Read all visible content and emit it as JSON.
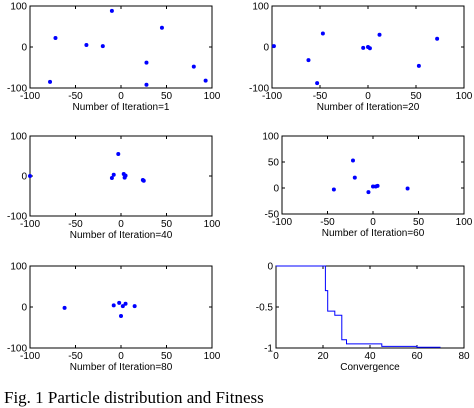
{
  "caption": "Fig. 1 Particle distribution and Fitness",
  "colors": {
    "marker": "#0000ff",
    "line": "#0000ff",
    "axes": "#000000"
  },
  "chart_data": [
    {
      "type": "scatter",
      "xlabel": "Number of Iteration=1",
      "xlim": [
        -100,
        100
      ],
      "ylim": [
        -100,
        100
      ],
      "xticks": [
        -100,
        -50,
        0,
        50,
        100
      ],
      "yticks": [
        -100,
        0,
        100
      ],
      "grid": false,
      "points": [
        [
          -78,
          -85
        ],
        [
          -72,
          22
        ],
        [
          -38,
          5
        ],
        [
          -20,
          2
        ],
        [
          -10,
          88
        ],
        [
          28,
          -38
        ],
        [
          28,
          -92
        ],
        [
          45,
          47
        ],
        [
          80,
          -48
        ],
        [
          93,
          -82
        ]
      ]
    },
    {
      "type": "scatter",
      "xlabel": "Number of Iteration=20",
      "xlim": [
        -100,
        100
      ],
      "ylim": [
        -100,
        100
      ],
      "xticks": [
        -100,
        -50,
        0,
        50,
        100
      ],
      "yticks": [
        -100,
        0,
        100
      ],
      "grid": false,
      "points": [
        [
          -98,
          2
        ],
        [
          -62,
          -32
        ],
        [
          -53,
          -88
        ],
        [
          -47,
          33
        ],
        [
          -5,
          -2
        ],
        [
          0,
          0
        ],
        [
          2,
          -3
        ],
        [
          12,
          30
        ],
        [
          53,
          -46
        ],
        [
          72,
          20
        ]
      ]
    },
    {
      "type": "scatter",
      "xlabel": "Number of Iteration=40",
      "xlim": [
        -100,
        100
      ],
      "ylim": [
        -100,
        100
      ],
      "xticks": [
        -100,
        -50,
        0,
        50,
        100
      ],
      "yticks": [
        -100,
        0,
        100
      ],
      "grid": false,
      "points": [
        [
          -100,
          0
        ],
        [
          -10,
          -5
        ],
        [
          -8,
          3
        ],
        [
          -3,
          55
        ],
        [
          3,
          5
        ],
        [
          4,
          -4
        ],
        [
          5,
          1
        ],
        [
          25,
          -12
        ],
        [
          24,
          -10
        ]
      ]
    },
    {
      "type": "scatter",
      "xlabel": "Number of Iteration=60",
      "xlim": [
        -100,
        100
      ],
      "ylim": [
        -50,
        100
      ],
      "xticks": [
        -100,
        -50,
        0,
        50,
        100
      ],
      "yticks": [
        -50,
        0,
        50,
        100
      ],
      "grid": false,
      "points": [
        [
          -43,
          -3
        ],
        [
          -22,
          53
        ],
        [
          -20,
          20
        ],
        [
          -5,
          -8
        ],
        [
          0,
          3
        ],
        [
          3,
          3
        ],
        [
          5,
          4
        ],
        [
          38,
          -1
        ]
      ]
    },
    {
      "type": "scatter",
      "xlabel": "Number of Iteration=80",
      "xlim": [
        -100,
        100
      ],
      "ylim": [
        -100,
        100
      ],
      "xticks": [
        -100,
        -50,
        0,
        50,
        100
      ],
      "yticks": [
        -100,
        0,
        100
      ],
      "grid": false,
      "points": [
        [
          -62,
          -2
        ],
        [
          -8,
          4
        ],
        [
          -2,
          10
        ],
        [
          0,
          -22
        ],
        [
          2,
          2
        ],
        [
          5,
          8
        ],
        [
          15,
          2
        ]
      ]
    },
    {
      "type": "line",
      "xlabel": "Convergence",
      "xlim": [
        0,
        80
      ],
      "ylim": [
        -1,
        0
      ],
      "xticks": [
        0,
        20,
        40,
        60,
        80
      ],
      "yticks": [
        -1,
        -0.5,
        0
      ],
      "grid": false,
      "x": [
        0,
        20,
        21,
        21,
        22,
        22,
        25,
        25,
        28,
        28,
        30,
        30,
        45,
        45,
        60,
        60,
        70
      ],
      "y": [
        0,
        0,
        0,
        -0.3,
        -0.3,
        -0.55,
        -0.55,
        -0.6,
        -0.6,
        -0.9,
        -0.9,
        -0.95,
        -0.95,
        -0.98,
        -0.98,
        -0.99,
        -0.99
      ]
    }
  ]
}
